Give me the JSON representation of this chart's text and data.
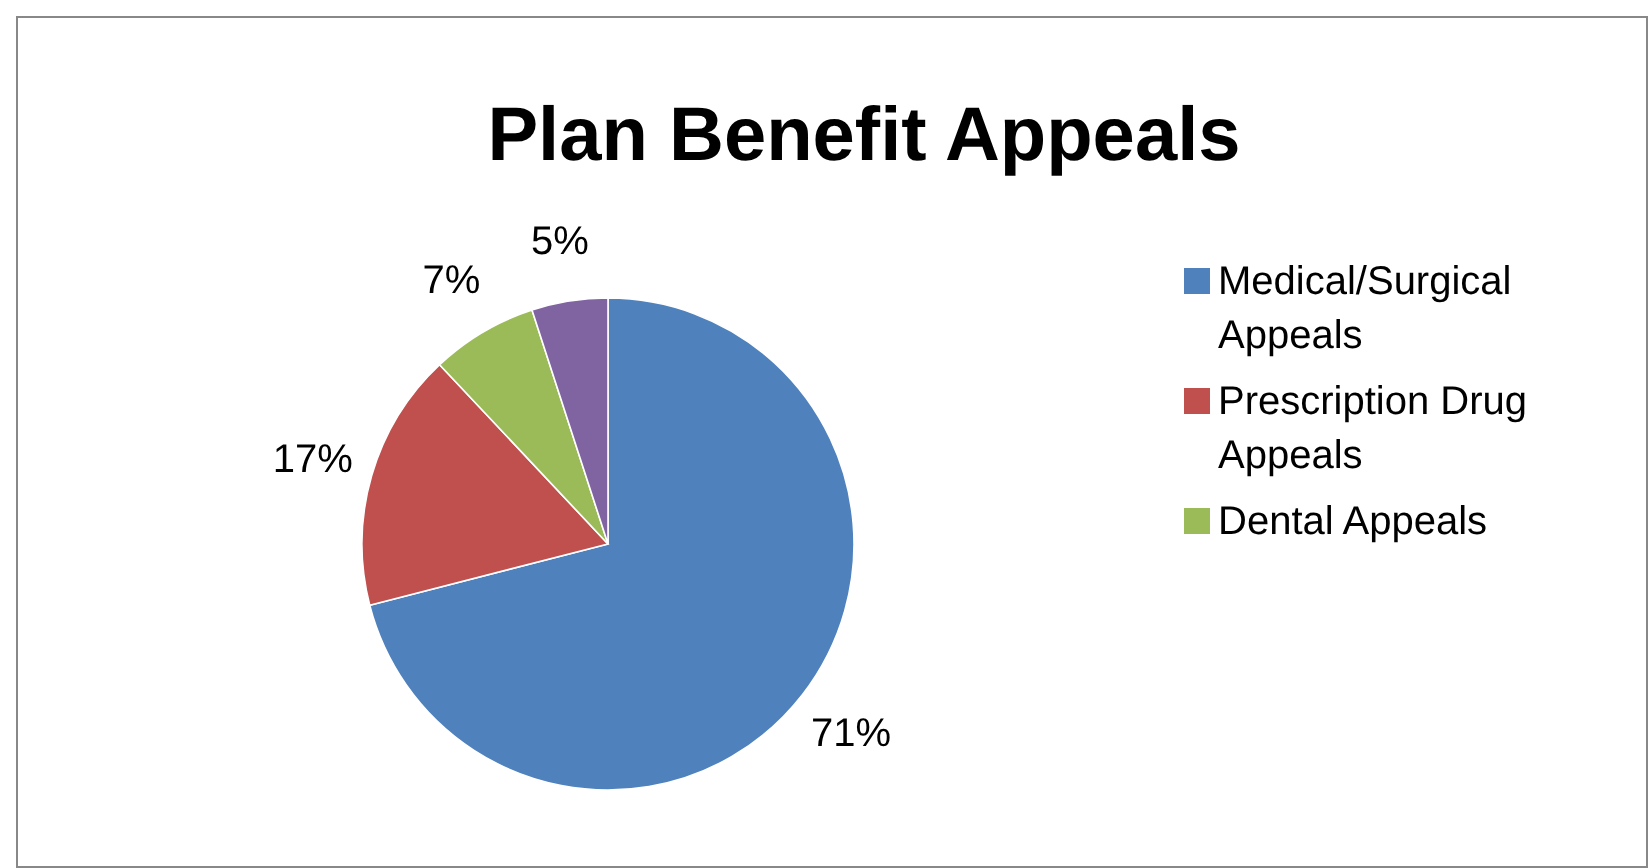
{
  "chart_data": {
    "type": "pie",
    "title": "Plan Benefit Appeals",
    "categories": [
      "Medical/Surgical Appeals",
      "Prescription Drug Appeals",
      "Dental Appeals",
      null
    ],
    "values": [
      71,
      17,
      7,
      5
    ],
    "colors": [
      "#4f81bd",
      "#c0504d",
      "#9bbb59",
      "#8064a2"
    ],
    "value_labels": [
      "71%",
      "17%",
      "7%",
      "5%"
    ],
    "legend": "right"
  }
}
